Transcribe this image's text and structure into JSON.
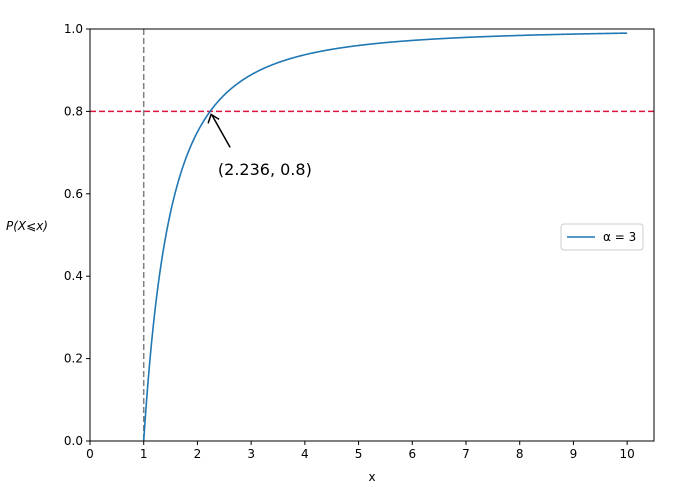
{
  "chart_data": {
    "type": "line",
    "title": "",
    "xlabel": "x",
    "ylabel": "P(X⩽x)",
    "xlim": [
      0,
      10.5
    ],
    "ylim": [
      0,
      1.0
    ],
    "xticks": [
      0,
      1,
      2,
      3,
      4,
      5,
      6,
      7,
      8,
      9,
      10
    ],
    "yticks": [
      0.0,
      0.2,
      0.4,
      0.6,
      0.8,
      1.0
    ],
    "ytick_labels": [
      "0.0",
      "0.2",
      "0.4",
      "0.6",
      "0.8",
      "1.0"
    ],
    "grid": false,
    "legend_position": "right",
    "series": [
      {
        "name": "α = 3",
        "color": "#1f77b4",
        "x": [
          1,
          1.05,
          1.1,
          1.2,
          1.3,
          1.4,
          1.5,
          1.6,
          1.8,
          2,
          2.236,
          2.5,
          3,
          3.5,
          4,
          4.5,
          5,
          6,
          7,
          8,
          9,
          10
        ],
        "y": [
          0,
          0.093,
          0.1736,
          0.3056,
          0.4083,
          0.4898,
          0.5556,
          0.6094,
          0.6914,
          0.75,
          0.8,
          0.84,
          0.8889,
          0.9184,
          0.9375,
          0.9506,
          0.96,
          0.9722,
          0.9796,
          0.9844,
          0.9877,
          0.99
        ]
      }
    ],
    "reference_lines": [
      {
        "orientation": "horizontal",
        "value": 0.8,
        "color": "#dc143c",
        "style": "dashed"
      },
      {
        "orientation": "vertical",
        "value": 1,
        "color": "#808080",
        "style": "dashed"
      }
    ],
    "annotation": {
      "text": "(2.236,  0.8)",
      "point": [
        2.236,
        0.8
      ],
      "text_position": [
        2.4,
        0.66
      ]
    }
  }
}
